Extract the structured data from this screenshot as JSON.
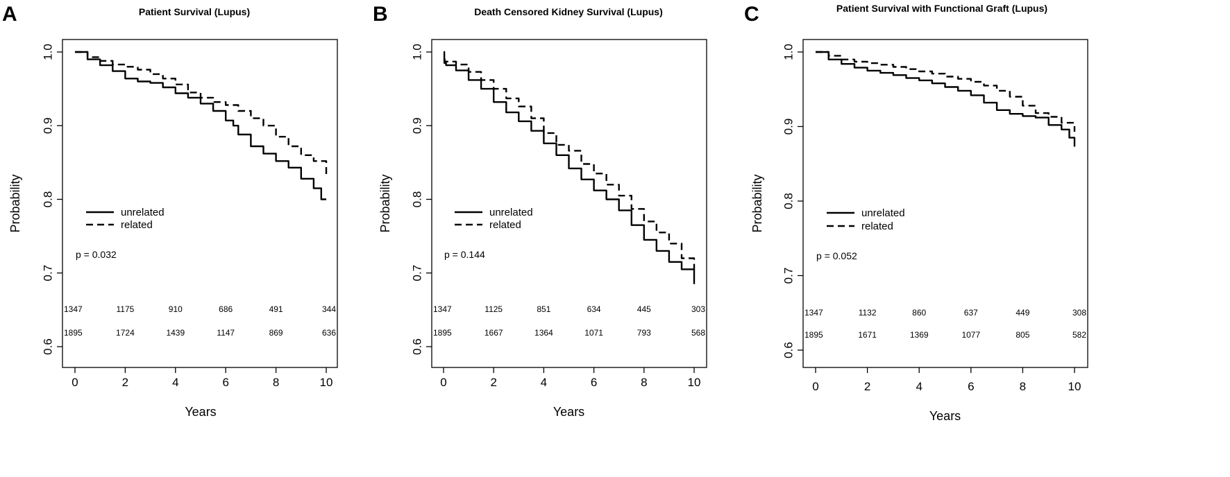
{
  "chart_data": [
    {
      "panel_label": "A",
      "type": "line",
      "title": "Patient Survival (Lupus)",
      "xlabel": "Years",
      "ylabel": "Probability",
      "xlim": [
        0,
        10
      ],
      "ylim": [
        0.6,
        1.0
      ],
      "xticks": [
        0,
        2,
        4,
        6,
        8,
        10
      ],
      "yticks": [
        0.6,
        0.7,
        0.8,
        0.9,
        1.0
      ],
      "ytick_labels": [
        "0.6",
        "0.7",
        "0.8",
        "0.9",
        "1.0"
      ],
      "grid": false,
      "legend_position": "center-left",
      "p_value": "p = 0.032",
      "series": [
        {
          "name": "unrelated",
          "style": "solid",
          "x": [
            0,
            0.5,
            1,
            1.5,
            2,
            2.5,
            3,
            3.5,
            4,
            4.5,
            5,
            5.5,
            6,
            6.3,
            6.5,
            7,
            7.5,
            8,
            8.5,
            9,
            9.5,
            9.8,
            10
          ],
          "y": [
            1.0,
            0.99,
            0.982,
            0.974,
            0.964,
            0.96,
            0.958,
            0.952,
            0.944,
            0.938,
            0.93,
            0.92,
            0.907,
            0.9,
            0.888,
            0.872,
            0.862,
            0.852,
            0.843,
            0.828,
            0.815,
            0.8,
            0.8
          ]
        },
        {
          "name": "related",
          "style": "dashed",
          "x": [
            0,
            0.5,
            1,
            1.5,
            2,
            2.5,
            3,
            3.5,
            4,
            4.5,
            5,
            5.5,
            6,
            6.5,
            7,
            7.5,
            8,
            8.5,
            9,
            9.5,
            10
          ],
          "y": [
            1.0,
            0.993,
            0.988,
            0.983,
            0.98,
            0.976,
            0.97,
            0.964,
            0.956,
            0.945,
            0.938,
            0.932,
            0.928,
            0.92,
            0.91,
            0.9,
            0.885,
            0.872,
            0.86,
            0.852,
            0.83
          ]
        }
      ],
      "risk_table": {
        "times": [
          0,
          2,
          4,
          6,
          8,
          10
        ],
        "rows": [
          {
            "series": "unrelated",
            "counts": [
              "1347",
              "1175",
              "910",
              "686",
              "491",
              "344"
            ]
          },
          {
            "series": "related",
            "counts": [
              "1895",
              "1724",
              "1439",
              "1147",
              "869",
              "636"
            ]
          }
        ]
      }
    },
    {
      "panel_label": "B",
      "type": "line",
      "title": "Death Censored Kidney Survival (Lupus)",
      "xlabel": "Years",
      "ylabel": "Probability",
      "xlim": [
        0,
        10
      ],
      "ylim": [
        0.6,
        1.0
      ],
      "xticks": [
        0,
        2,
        4,
        6,
        8,
        10
      ],
      "yticks": [
        0.6,
        0.7,
        0.8,
        0.9,
        1.0
      ],
      "ytick_labels": [
        "0.6",
        "0.7",
        "0.8",
        "0.9",
        "1.0"
      ],
      "grid": false,
      "legend_position": "center-left",
      "p_value": "p = 0.144",
      "series": [
        {
          "name": "unrelated",
          "style": "solid",
          "x": [
            0,
            0.03,
            0.1,
            0.5,
            1,
            1.5,
            2,
            2.5,
            3,
            3.5,
            4,
            4.5,
            5,
            5.5,
            6,
            6.5,
            7,
            7.5,
            8,
            8.5,
            9,
            9.5,
            10
          ],
          "y": [
            1.0,
            0.985,
            0.982,
            0.975,
            0.962,
            0.95,
            0.932,
            0.918,
            0.906,
            0.893,
            0.876,
            0.86,
            0.842,
            0.827,
            0.812,
            0.8,
            0.785,
            0.765,
            0.745,
            0.73,
            0.715,
            0.705,
            0.685
          ]
        },
        {
          "name": "related",
          "style": "dashed",
          "x": [
            0,
            0.05,
            0.5,
            1,
            1.5,
            2,
            2.5,
            3,
            3.5,
            4,
            4.5,
            5,
            5.5,
            6,
            6.5,
            7,
            7.5,
            8,
            8.5,
            9,
            9.5,
            10
          ],
          "y": [
            0.99,
            0.987,
            0.983,
            0.973,
            0.962,
            0.95,
            0.937,
            0.926,
            0.91,
            0.89,
            0.874,
            0.866,
            0.848,
            0.835,
            0.82,
            0.805,
            0.787,
            0.77,
            0.755,
            0.74,
            0.72,
            0.705
          ]
        }
      ],
      "risk_table": {
        "times": [
          0,
          2,
          4,
          6,
          8,
          10
        ],
        "rows": [
          {
            "series": "unrelated",
            "counts": [
              "1347",
              "1125",
              "851",
              "634",
              "445",
              "303"
            ]
          },
          {
            "series": "related",
            "counts": [
              "1895",
              "1667",
              "1364",
              "1071",
              "793",
              "568"
            ]
          }
        ]
      }
    },
    {
      "panel_label": "C",
      "type": "line",
      "title": "Patient Survival with Functional Graft (Lupus)",
      "xlabel": "Years",
      "ylabel": "Probability",
      "xlim": [
        0,
        10
      ],
      "ylim": [
        0.6,
        1.0
      ],
      "xticks": [
        0,
        2,
        4,
        6,
        8,
        10
      ],
      "yticks": [
        0.6,
        0.7,
        0.8,
        0.9,
        1.0
      ],
      "ytick_labels": [
        "0.6",
        "0.7",
        "0.8",
        "0.9",
        "1.0"
      ],
      "grid": false,
      "legend_position": "center-left",
      "p_value": "p = 0.052",
      "series": [
        {
          "name": "unrelated",
          "style": "solid",
          "x": [
            0,
            0.5,
            1,
            1.5,
            2,
            2.5,
            3,
            3.5,
            4,
            4.5,
            5,
            5.5,
            6,
            6.5,
            7,
            7.5,
            8,
            8.5,
            9,
            9.5,
            9.8,
            10
          ],
          "y": [
            1.0,
            0.99,
            0.984,
            0.979,
            0.975,
            0.972,
            0.969,
            0.965,
            0.962,
            0.958,
            0.953,
            0.948,
            0.942,
            0.932,
            0.922,
            0.917,
            0.914,
            0.912,
            0.902,
            0.896,
            0.885,
            0.873
          ]
        },
        {
          "name": "related",
          "style": "dashed",
          "x": [
            0,
            0.5,
            1,
            1.5,
            2,
            2.5,
            3,
            3.5,
            4,
            4.5,
            5,
            5.5,
            6,
            6.5,
            7,
            7.5,
            8,
            8.5,
            9,
            9.5,
            10
          ],
          "y": [
            1.0,
            0.995,
            0.99,
            0.987,
            0.985,
            0.983,
            0.98,
            0.977,
            0.974,
            0.971,
            0.967,
            0.964,
            0.96,
            0.955,
            0.948,
            0.94,
            0.928,
            0.918,
            0.913,
            0.905,
            0.893
          ]
        }
      ],
      "risk_table": {
        "times": [
          0,
          2,
          4,
          6,
          8,
          10
        ],
        "rows": [
          {
            "series": "unrelated",
            "counts": [
              "1347",
              "1132",
              "860",
              "637",
              "449",
              "308"
            ]
          },
          {
            "series": "related",
            "counts": [
              "1895",
              "1671",
              "1369",
              "1077",
              "805",
              "582"
            ]
          }
        ]
      }
    }
  ]
}
